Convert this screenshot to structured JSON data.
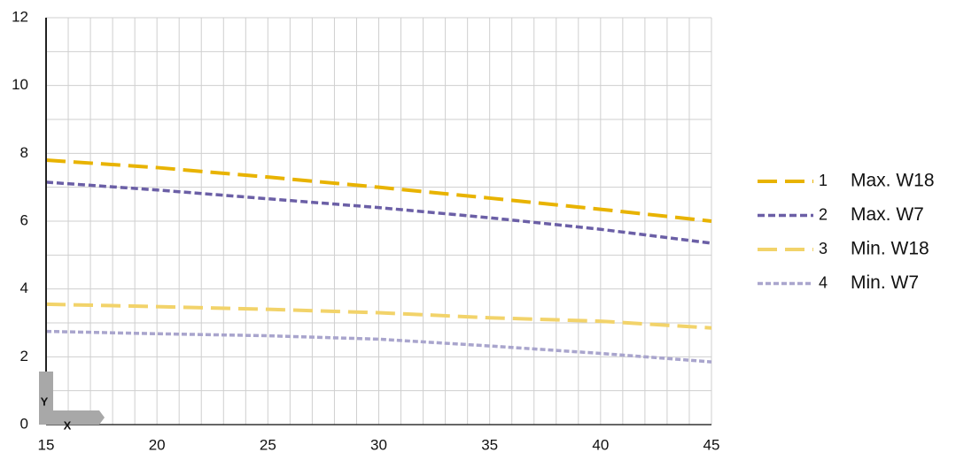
{
  "chart_data": {
    "type": "line",
    "x": [
      15,
      20,
      25,
      30,
      35,
      40,
      45
    ],
    "series": [
      {
        "id": "1",
        "name": "Max. W18",
        "color": "#e8b300",
        "dash": "22 9",
        "width": 4,
        "values": [
          7.8,
          7.58,
          7.3,
          7.0,
          6.68,
          6.35,
          6.0
        ]
      },
      {
        "id": "2",
        "name": "Max. W7",
        "color": "#6b5fa6",
        "dash": "8 4",
        "width": 3.5,
        "values": [
          7.15,
          6.92,
          6.66,
          6.4,
          6.1,
          5.76,
          5.35
        ]
      },
      {
        "id": "3",
        "name": "Min. W18",
        "color": "#f2d36a",
        "dash": "22 9",
        "width": 4,
        "values": [
          3.55,
          3.48,
          3.4,
          3.3,
          3.15,
          3.05,
          2.85
        ]
      },
      {
        "id": "4",
        "name": "Min. W7",
        "color": "#a9a5cd",
        "dash": "6 3",
        "width": 3.5,
        "values": [
          2.75,
          2.68,
          2.62,
          2.52,
          2.32,
          2.1,
          1.85
        ]
      }
    ],
    "xlim": [
      15,
      45
    ],
    "xticks": [
      15,
      20,
      25,
      30,
      35,
      40,
      45
    ],
    "ylim": [
      0,
      12
    ],
    "yticks": [
      0,
      2,
      4,
      6,
      8,
      10,
      12
    ],
    "x_minor_ticks": [
      16,
      17,
      18,
      19,
      21,
      22,
      23,
      24,
      26,
      27,
      28,
      29,
      31,
      32,
      33,
      34,
      36,
      37,
      38,
      39,
      41,
      42,
      43,
      44
    ],
    "y_minor_ticks": [
      1,
      3,
      5,
      7,
      9,
      11
    ],
    "grid": true,
    "legend": "right",
    "axis_icon": {
      "y": "Y",
      "x": "X"
    }
  }
}
